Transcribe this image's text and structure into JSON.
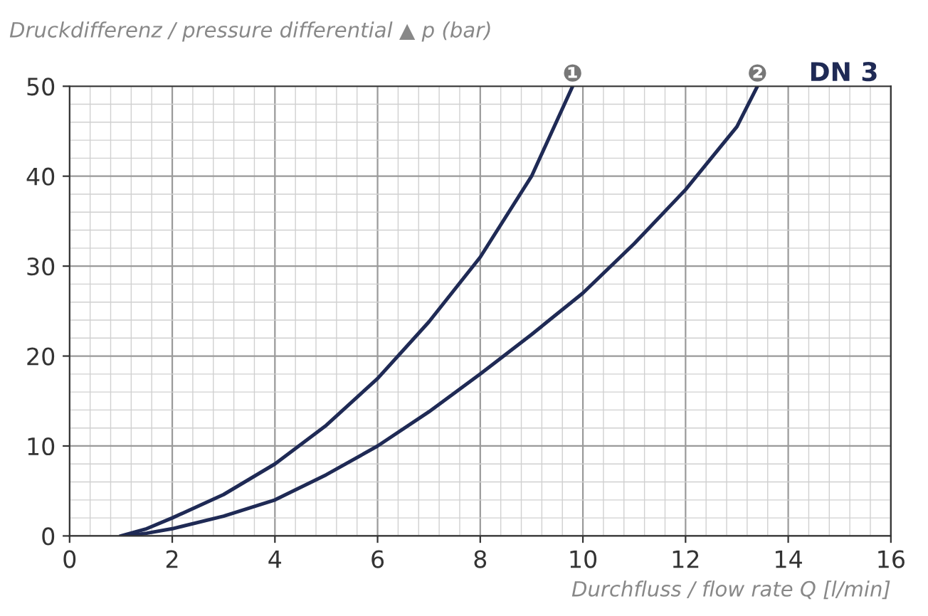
{
  "chart_data": {
    "type": "line",
    "ylabel": "Druckdifferenz / pressure differential ▲ p (bar)",
    "xlabel": "Durchfluss / flow rate Q [l/min]",
    "annotations": [
      "DN 3"
    ],
    "series": [
      {
        "name": "❶",
        "color": "#1f2a55",
        "x": [
          1,
          1.5,
          2,
          3,
          4,
          5,
          6,
          7,
          8,
          9,
          9.8
        ],
        "values": [
          0,
          0.8,
          2,
          4.6,
          8,
          12.3,
          17.5,
          23.8,
          31,
          40,
          50
        ]
      },
      {
        "name": "❷",
        "color": "#1f2a55",
        "x": [
          1.1,
          1.5,
          2,
          3,
          4,
          5,
          6,
          7,
          8,
          9,
          10,
          11,
          12,
          13,
          13.4
        ],
        "values": [
          0,
          0.3,
          0.8,
          2.2,
          4,
          6.8,
          10,
          13.8,
          18,
          22.4,
          27,
          32.5,
          38.5,
          45.5,
          50
        ]
      }
    ],
    "xlim": [
      0,
      16
    ],
    "xticks": [
      0,
      2,
      4,
      6,
      8,
      10,
      12,
      14,
      16
    ],
    "ylim": [
      0,
      50
    ],
    "yticks": [
      0,
      10,
      20,
      30,
      40,
      50
    ],
    "grid": true,
    "marker": "none",
    "line_style": "solid",
    "legend": false
  }
}
